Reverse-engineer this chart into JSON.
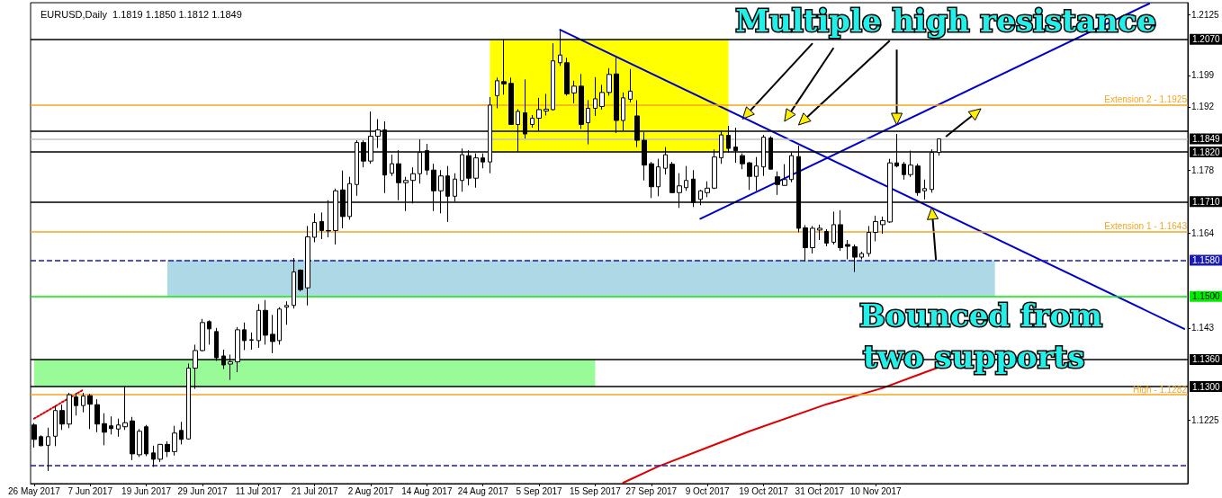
{
  "chart_data": {
    "type": "candlestick",
    "title": "EURUSD,Daily  1.1819 1.1850 1.1812 1.1849",
    "annotations": [
      "Multiple high resistance",
      "Bounced from",
      "two supports"
    ],
    "categories": [
      "26 May 2017",
      null,
      null,
      null,
      null,
      null,
      null,
      null,
      "7 Jun 2017",
      null,
      null,
      null,
      null,
      null,
      null,
      null,
      "19 Jun 2017",
      null,
      null,
      null,
      null,
      null,
      null,
      null,
      "29 Jun 2017",
      null,
      null,
      null,
      null,
      null,
      null,
      null,
      "11 Jul 2017",
      null,
      null,
      null,
      null,
      null,
      null,
      null,
      "21 Jul 2017",
      null,
      null,
      null,
      null,
      null,
      null,
      null,
      "2 Aug 2017",
      null,
      null,
      null,
      null,
      null,
      null,
      null,
      "14 Aug 2017",
      null,
      null,
      null,
      null,
      null,
      null,
      null,
      "24 Aug 2017",
      null,
      null,
      null,
      null,
      null,
      null,
      null,
      "5 Sep 2017",
      null,
      null,
      null,
      null,
      null,
      null,
      null,
      "15 Sep 2017",
      null,
      null,
      null,
      null,
      null,
      null,
      null,
      "27 Sep 2017",
      null,
      null,
      null,
      null,
      null,
      null,
      null,
      "9 Oct 2017",
      null,
      null,
      null,
      null,
      null,
      null,
      null,
      "19 Oct 2017",
      null,
      null,
      null,
      null,
      null,
      null,
      null,
      "31 Oct 2017",
      null,
      null,
      null,
      null,
      null,
      null,
      null,
      "10 Nov 2017",
      null,
      null,
      null,
      null,
      null,
      null,
      null,
      null,
      null,
      null,
      null,
      null,
      null,
      null,
      null,
      null,
      null,
      null,
      null,
      null,
      null,
      null,
      null,
      null,
      null,
      null,
      null,
      null,
      null,
      null,
      null,
      null,
      null,
      null,
      null,
      null,
      null,
      null,
      null,
      null,
      null,
      null,
      null,
      null
    ],
    "ohlc": [
      [
        1.1215,
        1.1219,
        1.1165,
        1.1183
      ],
      [
        1.1189,
        1.1192,
        1.1168,
        1.1169
      ],
      [
        1.117,
        1.1209,
        1.1113,
        1.1189
      ],
      [
        1.119,
        1.1258,
        1.1168,
        1.1247
      ],
      [
        1.1247,
        1.126,
        1.1204,
        1.1217
      ],
      [
        1.1217,
        1.1286,
        1.1208,
        1.1282
      ],
      [
        1.1277,
        1.1286,
        1.1236,
        1.1258
      ],
      [
        1.1258,
        1.1286,
        1.1243,
        1.1279
      ],
      [
        1.128,
        1.1284,
        1.1206,
        1.1261
      ],
      [
        1.126,
        1.1272,
        1.1199,
        1.1217
      ],
      [
        1.1218,
        1.1241,
        1.117,
        1.1199
      ],
      [
        1.1213,
        1.1234,
        1.1194,
        1.1207
      ],
      [
        1.1206,
        1.1229,
        1.1189,
        1.1215
      ],
      [
        1.1211,
        1.13,
        1.1204,
        1.122
      ],
      [
        1.1224,
        1.1233,
        1.1137,
        1.1151
      ],
      [
        1.1149,
        1.1206,
        1.1144,
        1.1201
      ],
      [
        1.1211,
        1.1215,
        1.1146,
        1.1151
      ],
      [
        1.1153,
        1.1169,
        1.1122,
        1.1139
      ],
      [
        1.1139,
        1.1172,
        1.1133,
        1.1172
      ],
      [
        1.1172,
        1.1179,
        1.1144,
        1.1156
      ],
      [
        1.1156,
        1.1213,
        1.1147,
        1.1197
      ],
      [
        1.1203,
        1.1222,
        1.1172,
        1.1183
      ],
      [
        1.1184,
        1.1351,
        1.1183,
        1.1341
      ],
      [
        1.1341,
        1.1393,
        1.1295,
        1.138
      ],
      [
        1.138,
        1.145,
        1.1378,
        1.1442
      ],
      [
        1.1444,
        1.1447,
        1.1393,
        1.1428
      ],
      [
        1.1422,
        1.143,
        1.1357,
        1.1364
      ],
      [
        1.1368,
        1.1382,
        1.1339,
        1.1348
      ],
      [
        1.135,
        1.1371,
        1.1315,
        1.1355
      ],
      [
        1.1355,
        1.1432,
        1.1332,
        1.1426
      ],
      [
        1.1426,
        1.1442,
        1.1381,
        1.1402
      ],
      [
        1.1403,
        1.142,
        1.1382,
        1.1404
      ],
      [
        1.1402,
        1.1483,
        1.1386,
        1.1469
      ],
      [
        1.1469,
        1.1492,
        1.1393,
        1.1414
      ],
      [
        1.1416,
        1.1459,
        1.1374,
        1.14
      ],
      [
        1.1402,
        1.1476,
        1.1393,
        1.1472
      ],
      [
        1.1476,
        1.1489,
        1.1437,
        1.148
      ],
      [
        1.148,
        1.1585,
        1.1473,
        1.1554
      ],
      [
        1.1558,
        1.156,
        1.1511,
        1.1515
      ],
      [
        1.1519,
        1.1656,
        1.148,
        1.1632
      ],
      [
        1.1631,
        1.1684,
        1.162,
        1.1664
      ],
      [
        1.1666,
        1.1686,
        1.1627,
        1.1646
      ],
      [
        1.1646,
        1.1713,
        1.1631,
        1.1645
      ],
      [
        1.1646,
        1.1739,
        1.1615,
        1.1734
      ],
      [
        1.1736,
        1.1779,
        1.1651,
        1.1677
      ],
      [
        1.1677,
        1.1765,
        1.167,
        1.175
      ],
      [
        1.1748,
        1.1846,
        1.1723,
        1.1841
      ],
      [
        1.1841,
        1.1846,
        1.1786,
        1.18
      ],
      [
        1.18,
        1.191,
        1.1794,
        1.1855
      ],
      [
        1.1855,
        1.1893,
        1.1829,
        1.1869
      ],
      [
        1.1869,
        1.1888,
        1.1729,
        1.1769
      ],
      [
        1.1773,
        1.1814,
        1.1767,
        1.1794
      ],
      [
        1.1794,
        1.1824,
        1.1713,
        1.1752
      ],
      [
        1.1752,
        1.1765,
        1.1689,
        1.1757
      ],
      [
        1.1757,
        1.1786,
        1.1706,
        1.1772
      ],
      [
        1.1772,
        1.1848,
        1.175,
        1.1819
      ],
      [
        1.1823,
        1.1838,
        1.1769,
        1.178
      ],
      [
        1.178,
        1.1794,
        1.1689,
        1.1734
      ],
      [
        1.1734,
        1.178,
        1.1684,
        1.1767
      ],
      [
        1.1767,
        1.1789,
        1.1665,
        1.1722
      ],
      [
        1.1722,
        1.1773,
        1.171,
        1.176
      ],
      [
        1.1757,
        1.1828,
        1.1732,
        1.1814
      ],
      [
        1.1812,
        1.1824,
        1.1746,
        1.1762
      ],
      [
        1.1762,
        1.1817,
        1.1741,
        1.1807
      ],
      [
        1.1807,
        1.1817,
        1.1784,
        1.1798
      ],
      [
        1.1798,
        1.1942,
        1.1773,
        1.1924
      ],
      [
        1.1945,
        1.1985,
        1.1917,
        1.1978
      ],
      [
        1.1976,
        1.207,
        1.1947,
        1.1971
      ],
      [
        1.1972,
        1.1985,
        1.1881,
        1.1881
      ],
      [
        1.1881,
        1.1915,
        1.1821,
        1.191
      ],
      [
        1.1907,
        1.1981,
        1.185,
        1.186
      ],
      [
        1.1881,
        1.1902,
        1.1874,
        1.1895
      ],
      [
        1.1895,
        1.194,
        1.1867,
        1.1914
      ],
      [
        1.1911,
        1.1949,
        1.1901,
        1.1915
      ],
      [
        1.1914,
        1.2061,
        1.1912,
        1.2022
      ],
      [
        1.2018,
        1.2089,
        1.2011,
        1.2035
      ],
      [
        1.2018,
        1.2029,
        1.1945,
        1.1949
      ],
      [
        1.1951,
        1.1978,
        1.1928,
        1.1966
      ],
      [
        1.1966,
        1.1993,
        1.1871,
        1.1881
      ],
      [
        1.1885,
        1.1935,
        1.1837,
        1.1917
      ],
      [
        1.1917,
        1.1986,
        1.19,
        1.1938
      ],
      [
        1.1921,
        1.1969,
        1.1914,
        1.1952
      ],
      [
        1.1952,
        1.2006,
        1.1945,
        1.1992
      ],
      [
        1.1993,
        1.2029,
        1.1862,
        1.189
      ],
      [
        1.189,
        1.1952,
        1.1867,
        1.194
      ],
      [
        1.1937,
        1.2004,
        1.193,
        1.1955
      ],
      [
        1.19,
        1.1935,
        1.1831,
        1.1846
      ],
      [
        1.1846,
        1.1864,
        1.1757,
        1.1791
      ],
      [
        1.1794,
        1.1798,
        1.1718,
        1.1743
      ],
      [
        1.1743,
        1.1805,
        1.1722,
        1.1787
      ],
      [
        1.1784,
        1.1831,
        1.177,
        1.1814
      ],
      [
        1.1793,
        1.1798,
        1.1729,
        1.173
      ],
      [
        1.173,
        1.1773,
        1.1696,
        1.1745
      ],
      [
        1.1741,
        1.1789,
        1.1734,
        1.1757
      ],
      [
        1.176,
        1.178,
        1.1698,
        1.1708
      ],
      [
        1.1715,
        1.1736,
        1.1702,
        1.1734
      ],
      [
        1.173,
        1.1755,
        1.172,
        1.174
      ],
      [
        1.174,
        1.1826,
        1.1738,
        1.1809
      ],
      [
        1.1807,
        1.1867,
        1.1794,
        1.1858
      ],
      [
        1.1857,
        1.1878,
        1.1819,
        1.1828
      ],
      [
        1.1831,
        1.1874,
        1.1796,
        1.1823
      ],
      [
        1.1812,
        1.1817,
        1.1782,
        1.1794
      ],
      [
        1.1796,
        1.1798,
        1.1736,
        1.1766
      ],
      [
        1.1766,
        1.1809,
        1.1734,
        1.1789
      ],
      [
        1.1787,
        1.1858,
        1.1767,
        1.1853
      ],
      [
        1.1851,
        1.1855,
        1.1782,
        1.1782
      ],
      [
        1.1765,
        1.1777,
        1.1725,
        1.1748
      ],
      [
        1.1746,
        1.1793,
        1.1745,
        1.1759
      ],
      [
        1.1759,
        1.1819,
        1.1753,
        1.1812
      ],
      [
        1.181,
        1.1834,
        1.1642,
        1.1651
      ],
      [
        1.1652,
        1.1658,
        1.1578,
        1.1608
      ],
      [
        1.1608,
        1.1656,
        1.1595,
        1.1651
      ],
      [
        1.1647,
        1.1659,
        1.1625,
        1.1651
      ],
      [
        1.1644,
        1.1649,
        1.1611,
        1.1618
      ],
      [
        1.162,
        1.1688,
        1.1615,
        1.1659
      ],
      [
        1.1659,
        1.1691,
        1.1601,
        1.1608
      ],
      [
        1.1615,
        1.1625,
        1.1582,
        1.1611
      ],
      [
        1.161,
        1.1615,
        1.1554,
        1.1587
      ],
      [
        1.1587,
        1.1599,
        1.1582,
        1.1595
      ],
      [
        1.1595,
        1.1656,
        1.1588,
        1.1642
      ],
      [
        1.1642,
        1.1679,
        1.1622,
        1.1666
      ],
      [
        1.1659,
        1.1677,
        1.1639,
        1.1668
      ],
      [
        1.1665,
        1.1805,
        1.1663,
        1.1796
      ],
      [
        1.1796,
        1.186,
        1.1786,
        1.1789
      ],
      [
        1.1793,
        1.1798,
        1.1759,
        1.177
      ],
      [
        1.177,
        1.1823,
        1.1765,
        1.1791
      ],
      [
        1.1789,
        1.1794,
        1.1723,
        1.173
      ],
      [
        1.1734,
        1.1759,
        1.1715,
        1.1739
      ],
      [
        1.1737,
        1.1826,
        1.173,
        1.1819
      ],
      [
        1.1819,
        1.185,
        1.1812,
        1.1849
      ],
      null,
      null,
      null,
      null,
      null,
      null,
      null,
      null,
      null,
      null,
      null,
      null,
      null,
      null,
      null,
      null,
      null,
      null,
      null,
      null,
      null,
      null,
      null,
      null,
      null,
      null,
      null,
      null,
      null,
      null,
      null,
      null,
      null,
      null,
      null
    ],
    "series": [
      {
        "type": "line",
        "color": "#0000cc",
        "values": [
          null,
          null,
          null,
          null,
          null,
          null,
          null,
          null,
          null,
          null,
          null,
          null,
          null,
          null,
          null,
          null,
          null,
          null,
          null,
          null,
          null,
          null,
          null,
          null,
          null,
          null,
          null,
          null,
          null,
          null,
          null,
          null,
          null,
          null,
          null,
          null,
          null,
          null,
          null,
          null,
          null,
          null,
          null,
          null,
          null,
          null,
          null,
          null,
          null,
          null,
          null,
          null,
          null,
          null,
          null,
          null,
          null,
          null,
          null,
          null,
          null,
          null,
          null,
          null,
          null,
          null,
          null,
          null,
          null,
          null,
          null,
          null,
          null,
          null,
          null,
          1.2091,
          null,
          null,
          null,
          null,
          null,
          null,
          null,
          null,
          null,
          null,
          null,
          null,
          null,
          null,
          null,
          null,
          null,
          null,
          null,
          null,
          null,
          null,
          null,
          null,
          null,
          null,
          null,
          null,
          null,
          null,
          null,
          null,
          null,
          null,
          null,
          null,
          null,
          null,
          null,
          null,
          null,
          null,
          null,
          null,
          null,
          null,
          null,
          null,
          null,
          null,
          null,
          null,
          null,
          null,
          null,
          null,
          null,
          null,
          null,
          null,
          null,
          null,
          null,
          null,
          null,
          null,
          null,
          null,
          null,
          null,
          null,
          null,
          null,
          null,
          null,
          null,
          null,
          null,
          null,
          null,
          null,
          null,
          null,
          null,
          null,
          null,
          null,
          null,
          1.1428
        ]
      },
      {
        "type": "line",
        "color": "#0000cc",
        "values": [
          null,
          null,
          null,
          null,
          null,
          null,
          null,
          null,
          null,
          null,
          null,
          null,
          null,
          null,
          null,
          null,
          null,
          null,
          null,
          null,
          null,
          null,
          null,
          null,
          null,
          null,
          null,
          null,
          null,
          null,
          null,
          null,
          null,
          null,
          null,
          null,
          null,
          null,
          null,
          null,
          null,
          null,
          null,
          null,
          null,
          null,
          null,
          null,
          null,
          null,
          null,
          null,
          null,
          null,
          null,
          null,
          null,
          null,
          null,
          null,
          null,
          null,
          null,
          null,
          null,
          null,
          null,
          null,
          null,
          null,
          null,
          null,
          null,
          null,
          null,
          null,
          null,
          null,
          null,
          null,
          null,
          null,
          null,
          null,
          null,
          null,
          null,
          null,
          null,
          null,
          null,
          null,
          null,
          null,
          null,
          1.1672,
          null,
          null,
          null,
          null,
          null,
          null,
          null,
          null,
          null,
          null,
          null,
          null,
          null,
          null,
          null,
          null,
          null,
          null,
          null,
          null,
          null,
          null,
          null,
          null,
          null,
          null,
          null,
          null,
          null,
          null,
          null,
          null,
          null,
          null,
          null,
          null,
          null,
          null,
          null,
          null,
          null,
          null,
          null,
          null,
          null,
          null,
          null,
          null,
          null,
          null,
          null,
          null,
          null,
          null,
          null,
          null,
          null,
          null,
          null,
          null,
          null,
          null,
          null,
          1.2149,
          null,
          null,
          null,
          null,
          null
        ]
      },
      {
        "type": "line",
        "color": "#dd0000",
        "values": [
          null,
          null,
          null,
          null,
          null,
          null,
          null,
          null,
          null,
          null,
          null,
          null,
          null,
          null,
          null,
          null,
          null,
          null,
          null,
          null,
          null,
          null,
          null,
          null,
          null,
          null,
          null,
          null,
          null,
          null,
          null,
          null,
          null,
          null,
          null,
          null,
          null,
          null,
          null,
          null,
          null,
          null,
          null,
          null,
          null,
          null,
          null,
          null,
          null,
          null,
          null,
          null,
          null,
          null,
          null,
          null,
          null,
          null,
          null,
          null,
          null,
          null,
          null,
          null,
          null,
          null,
          null,
          null,
          null,
          null,
          null,
          null,
          null,
          null,
          null,
          null,
          null,
          null,
          null,
          null,
          null,
          null,
          null,
          null,
          1.1087,
          null,
          null,
          null,
          null,
          1.1123,
          null,
          null,
          null,
          null,
          null,
          null,
          null,
          null,
          null,
          null,
          null,
          null,
          1.1201,
          null,
          null,
          null,
          null,
          null,
          null,
          null,
          null,
          null,
          null,
          1.1261,
          null,
          null,
          null,
          null,
          null,
          null,
          null,
          1.1297,
          null,
          null,
          null,
          null,
          null,
          null,
          null,
          1.1343,
          null,
          null,
          null,
          null,
          null,
          null,
          null,
          null,
          null,
          null,
          null,
          null,
          null,
          null,
          null,
          null,
          null,
          null,
          null,
          null,
          null,
          null,
          null,
          null,
          null,
          null,
          null,
          null,
          null,
          null,
          null,
          null,
          null,
          null,
          null
        ]
      },
      {
        "type": "line",
        "color": "#dd0000",
        "line_style": "dotted",
        "values": [
          1.1229,
          null,
          null,
          null,
          null,
          null,
          null,
          1.1293,
          null,
          null,
          null,
          null,
          null,
          null,
          null,
          null,
          null,
          null,
          null,
          null,
          null,
          null,
          null,
          null,
          null,
          null,
          null,
          null,
          null,
          null,
          null,
          null,
          null,
          null,
          null,
          null,
          null,
          null,
          null,
          null,
          null,
          null,
          null,
          null,
          null,
          null,
          null,
          null,
          null,
          null,
          null,
          null,
          null,
          null,
          null,
          null,
          null,
          null,
          null,
          null,
          null,
          null,
          null,
          null,
          null,
          null,
          null,
          null,
          null,
          null,
          null,
          null,
          null,
          null,
          null,
          null,
          null,
          null,
          null,
          null,
          null,
          null,
          null,
          null,
          null,
          null,
          null,
          null,
          null,
          null,
          null,
          null,
          null,
          null,
          null,
          null,
          null,
          null,
          null,
          null,
          null,
          null,
          null,
          null,
          null,
          null,
          null,
          null,
          null,
          null,
          null,
          null,
          null,
          null,
          null,
          null,
          null,
          null,
          null,
          null,
          null,
          null,
          null,
          null,
          null,
          null,
          null,
          null,
          null,
          null,
          null,
          null,
          null,
          null,
          null,
          null,
          null,
          null,
          null,
          null,
          null,
          null,
          null,
          null,
          null,
          null,
          null,
          null,
          null,
          null,
          null,
          null,
          null,
          null,
          null,
          null,
          null,
          null,
          null,
          null,
          null,
          null,
          null,
          null,
          null
        ]
      }
    ],
    "ylim": [
      1.1085,
      1.2151
    ],
    "yticks": [
      1.2125,
      1.199,
      1.192,
      1.178,
      1.164,
      1.143,
      1.1225
    ],
    "ref_lines": [
      {
        "axis": "y",
        "value": 1.207,
        "label": "1.2070",
        "color": "#000000"
      },
      {
        "axis": "y",
        "value": 1.1925,
        "label": "Extension 2 - 1.1925",
        "color": "#f5a623"
      },
      {
        "axis": "y",
        "value": 1.1866,
        "color": "#000000"
      },
      {
        "axis": "y",
        "value": 1.1849,
        "label": "1.1849",
        "color": "#c0c0c0"
      },
      {
        "axis": "y",
        "value": 1.182,
        "label": "1.1820",
        "color": "#000000"
      },
      {
        "axis": "y",
        "value": 1.171,
        "label": "1.1710",
        "color": "#000000"
      },
      {
        "axis": "y",
        "value": 1.1643,
        "label": "Extension 1 - 1.1643",
        "color": "#f5a623"
      },
      {
        "axis": "y",
        "value": 1.158,
        "label": "1.1580",
        "color": "#1a1ab0",
        "line_style": "dashed"
      },
      {
        "axis": "y",
        "value": 1.15,
        "label": "1.1500",
        "color": "#00ee00"
      },
      {
        "axis": "y",
        "value": 1.136,
        "label": "1.1360",
        "color": "#000000"
      },
      {
        "axis": "y",
        "value": 1.13,
        "label": "1.1300",
        "color": "#000000"
      },
      {
        "axis": "y",
        "value": 1.1282,
        "label": "High - 1.1282",
        "color": "#f5a623"
      },
      {
        "axis": "y",
        "value": 1.1125,
        "color": "#1a1ab0",
        "line_style": "dashed"
      }
    ],
    "bands": [
      {
        "axis": "y",
        "from": 1.182,
        "to": 1.207,
        "color": "#ffff00"
      },
      {
        "axis": "y",
        "from": 1.15,
        "to": 1.158,
        "color": "#add8e6"
      },
      {
        "axis": "y",
        "from": 1.13,
        "to": 1.136,
        "color": "#98fb98"
      }
    ],
    "grid": false
  }
}
